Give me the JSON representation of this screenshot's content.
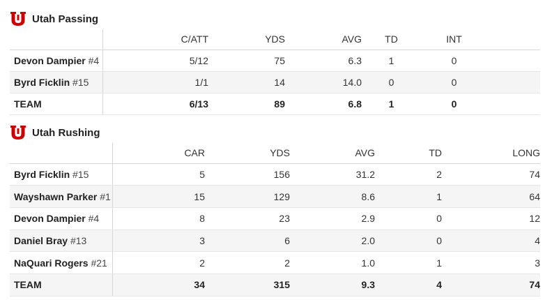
{
  "passing": {
    "title": "Utah Passing",
    "headers": [
      "C/ATT",
      "YDS",
      "AVG",
      "TD",
      "INT"
    ],
    "rows": [
      {
        "name": "Devon Dampier",
        "number": "#4",
        "cells": [
          "5/12",
          "75",
          "6.3",
          "1",
          "0"
        ]
      },
      {
        "name": "Byrd Ficklin",
        "number": "#15",
        "cells": [
          "1/1",
          "14",
          "14.0",
          "0",
          "0"
        ]
      }
    ],
    "team": {
      "label": "TEAM",
      "cells": [
        "6/13",
        "89",
        "6.8",
        "1",
        "0"
      ]
    }
  },
  "rushing": {
    "title": "Utah Rushing",
    "headers": [
      "CAR",
      "YDS",
      "AVG",
      "TD",
      "LONG"
    ],
    "rows": [
      {
        "name": "Byrd Ficklin",
        "number": "#15",
        "cells": [
          "5",
          "156",
          "31.2",
          "2",
          "74"
        ]
      },
      {
        "name": "Wayshawn Parker",
        "number": "#1",
        "cells": [
          "15",
          "129",
          "8.6",
          "1",
          "64"
        ]
      },
      {
        "name": "Devon Dampier",
        "number": "#4",
        "cells": [
          "8",
          "23",
          "2.9",
          "0",
          "12"
        ]
      },
      {
        "name": "Daniel Bray",
        "number": "#13",
        "cells": [
          "3",
          "6",
          "2.0",
          "0",
          "4"
        ]
      },
      {
        "name": "NaQuari Rogers",
        "number": "#21",
        "cells": [
          "2",
          "2",
          "1.0",
          "1",
          "3"
        ]
      }
    ],
    "team": {
      "label": "TEAM",
      "cells": [
        "34",
        "315",
        "9.3",
        "4",
        "74"
      ]
    }
  },
  "colors": {
    "brand": "#cc0000",
    "row_alt": "#f5f5f5",
    "rule": "#d6d6d6"
  },
  "icons": {
    "logo": "utah-u-logo-icon"
  }
}
